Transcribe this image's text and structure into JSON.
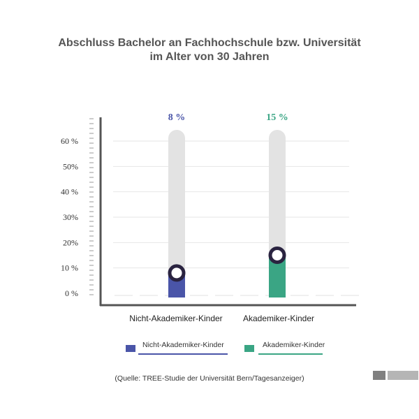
{
  "chart_data": {
    "type": "bar",
    "title_line1": "Abschluss Bachelor an Fachhochschule bzw. Universität",
    "title_line2": "im Alter von 30 Jahren",
    "categories": [
      "Nicht-Akademiker-Kinder",
      "Akademiker-Kinder"
    ],
    "values": [
      8,
      15
    ],
    "value_labels": [
      "8 %",
      "15 %"
    ],
    "colors": [
      "#4a55a8",
      "#3aa584"
    ],
    "track_color": "#e3e3e3",
    "axis_color": "#555555",
    "ylim": [
      0,
      65
    ],
    "y_ticks": [
      {
        "value": 0,
        "label": "0 %"
      },
      {
        "value": 10,
        "label": "10 %"
      },
      {
        "value": 20,
        "label": "20%"
      },
      {
        "value": 30,
        "label": "30%"
      },
      {
        "value": 40,
        "label": "40 %"
      },
      {
        "value": 50,
        "label": "50%"
      },
      {
        "value": 60,
        "label": "60 %"
      }
    ],
    "grid": true,
    "legend_position": "bottom"
  },
  "legend": [
    {
      "label": "Nicht-Akademiker-Kinder",
      "color": "#4a55a8"
    },
    {
      "label": "Akademiker-Kinder",
      "color": "#3aa584"
    }
  ],
  "source": "(Quelle: TREE-Studie der Universität Bern/Tagesanzeiger)",
  "deco_colors": [
    "#808080",
    "#b5b5b5"
  ]
}
